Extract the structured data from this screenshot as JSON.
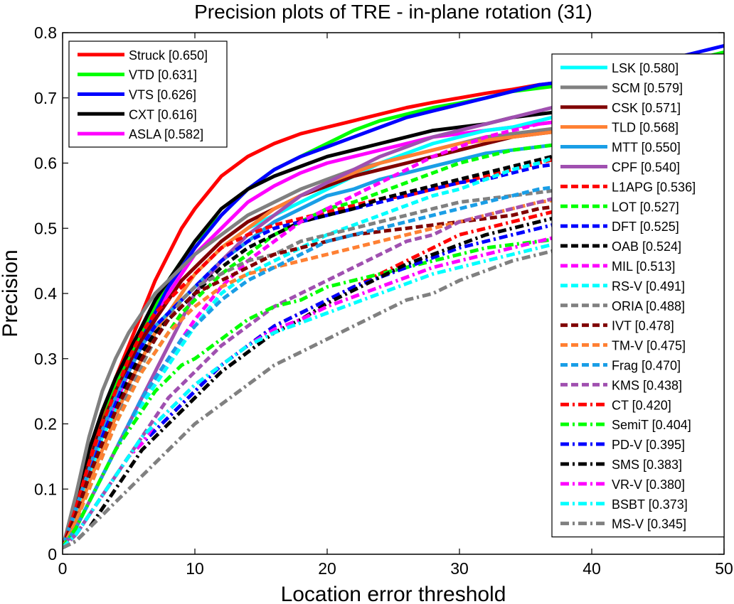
{
  "chart_data": {
    "type": "line",
    "title": "Precision plots of TRE - in-plane rotation (31)",
    "xlabel": "Location error threshold",
    "ylabel": "Precision",
    "xlim": [
      0,
      50
    ],
    "ylim": [
      0,
      0.8
    ],
    "xticks": [
      "0",
      "10",
      "20",
      "30",
      "40",
      "50"
    ],
    "yticks": [
      "0",
      "0.1",
      "0.2",
      "0.3",
      "0.4",
      "0.5",
      "0.6",
      "0.7",
      "0.8"
    ],
    "grid": false,
    "legends": [
      {
        "placement": "top-left",
        "entries": [
          0,
          1,
          2,
          3,
          4
        ]
      },
      {
        "placement": "right",
        "entries": [
          5,
          6,
          7,
          8,
          9,
          10,
          11,
          12,
          13,
          14,
          15,
          16,
          17,
          18,
          19,
          20,
          21,
          22,
          23,
          24,
          25,
          26,
          27,
          28
        ]
      }
    ],
    "x": [
      0,
      1,
      2,
      3,
      4,
      5,
      6,
      7,
      8,
      9,
      10,
      12,
      14,
      16,
      18,
      20,
      22,
      24,
      26,
      28,
      30,
      32,
      34,
      36,
      38,
      40,
      42,
      44,
      46,
      48,
      50
    ],
    "series": [
      {
        "name": "Struck [0.650]",
        "color": "#ff0000",
        "style": "solid",
        "values": [
          0.01,
          0.07,
          0.14,
          0.21,
          0.27,
          0.32,
          0.37,
          0.42,
          0.46,
          0.5,
          0.53,
          0.58,
          0.61,
          0.63,
          0.645,
          0.655,
          0.665,
          0.675,
          0.685,
          0.693,
          0.7,
          0.707,
          0.713,
          0.72,
          0.725,
          0.73,
          0.735,
          0.742,
          0.748,
          0.755,
          0.765
        ]
      },
      {
        "name": "VTD [0.631]",
        "color": "#00ff00",
        "style": "solid",
        "values": [
          0.01,
          0.07,
          0.14,
          0.2,
          0.26,
          0.3,
          0.34,
          0.38,
          0.42,
          0.45,
          0.48,
          0.52,
          0.56,
          0.59,
          0.61,
          0.63,
          0.65,
          0.665,
          0.675,
          0.685,
          0.692,
          0.7,
          0.71,
          0.715,
          0.72,
          0.725,
          0.73,
          0.74,
          0.75,
          0.76,
          0.77
        ]
      },
      {
        "name": "VTS [0.626]",
        "color": "#0000ff",
        "style": "solid",
        "values": [
          0.01,
          0.06,
          0.13,
          0.19,
          0.24,
          0.29,
          0.33,
          0.37,
          0.41,
          0.44,
          0.47,
          0.52,
          0.56,
          0.59,
          0.61,
          0.625,
          0.64,
          0.655,
          0.67,
          0.68,
          0.69,
          0.7,
          0.71,
          0.72,
          0.725,
          0.735,
          0.745,
          0.752,
          0.76,
          0.77,
          0.78
        ]
      },
      {
        "name": "CXT [0.616]",
        "color": "#000000",
        "style": "solid",
        "values": [
          0.01,
          0.08,
          0.16,
          0.22,
          0.27,
          0.31,
          0.35,
          0.39,
          0.42,
          0.45,
          0.48,
          0.53,
          0.56,
          0.58,
          0.595,
          0.61,
          0.62,
          0.63,
          0.64,
          0.65,
          0.655,
          0.66,
          0.67,
          0.675,
          0.68,
          0.685,
          0.69,
          0.695,
          0.7,
          0.705,
          0.71
        ]
      },
      {
        "name": "ASLA [0.582]",
        "color": "#ff00ff",
        "style": "solid",
        "values": [
          0.01,
          0.07,
          0.13,
          0.18,
          0.23,
          0.28,
          0.32,
          0.36,
          0.4,
          0.43,
          0.46,
          0.5,
          0.54,
          0.565,
          0.585,
          0.6,
          0.61,
          0.62,
          0.63,
          0.64,
          0.645,
          0.65,
          0.655,
          0.66,
          0.665,
          0.67,
          0.675,
          0.68,
          0.685,
          0.69,
          0.7
        ]
      },
      {
        "name": "LSK [0.580]",
        "color": "#00ffff",
        "style": "solid",
        "values": [
          0.01,
          0.06,
          0.12,
          0.18,
          0.22,
          0.26,
          0.3,
          0.34,
          0.37,
          0.4,
          0.43,
          0.47,
          0.5,
          0.52,
          0.54,
          0.56,
          0.58,
          0.6,
          0.615,
          0.63,
          0.64,
          0.65,
          0.655,
          0.665,
          0.675,
          0.685,
          0.69,
          0.695,
          0.7,
          0.71,
          0.72
        ]
      },
      {
        "name": "SCM [0.579]",
        "color": "#808080",
        "style": "solid",
        "values": [
          0.01,
          0.09,
          0.18,
          0.25,
          0.3,
          0.34,
          0.37,
          0.4,
          0.42,
          0.44,
          0.46,
          0.49,
          0.52,
          0.54,
          0.56,
          0.575,
          0.59,
          0.6,
          0.61,
          0.62,
          0.63,
          0.64,
          0.645,
          0.65,
          0.655,
          0.66,
          0.665,
          0.67,
          0.675,
          0.68,
          0.69
        ]
      },
      {
        "name": "CSK [0.571]",
        "color": "#800000",
        "style": "solid",
        "values": [
          0.01,
          0.07,
          0.14,
          0.2,
          0.25,
          0.29,
          0.33,
          0.36,
          0.39,
          0.42,
          0.44,
          0.48,
          0.51,
          0.53,
          0.55,
          0.565,
          0.58,
          0.59,
          0.6,
          0.61,
          0.62,
          0.63,
          0.64,
          0.645,
          0.65,
          0.655,
          0.66,
          0.665,
          0.67,
          0.675,
          0.68
        ]
      },
      {
        "name": "TLD [0.568]",
        "color": "#ff8033",
        "style": "solid",
        "values": [
          0.01,
          0.05,
          0.11,
          0.16,
          0.21,
          0.26,
          0.3,
          0.34,
          0.37,
          0.4,
          0.43,
          0.47,
          0.5,
          0.53,
          0.55,
          0.57,
          0.585,
          0.6,
          0.61,
          0.62,
          0.63,
          0.635,
          0.64,
          0.645,
          0.65,
          0.655,
          0.66,
          0.665,
          0.67,
          0.675,
          0.68
        ]
      },
      {
        "name": "MTT [0.550]",
        "color": "#1a9ee6",
        "style": "solid",
        "values": [
          0.01,
          0.07,
          0.13,
          0.19,
          0.24,
          0.28,
          0.32,
          0.35,
          0.37,
          0.39,
          0.41,
          0.45,
          0.48,
          0.51,
          0.53,
          0.55,
          0.56,
          0.575,
          0.585,
          0.595,
          0.605,
          0.615,
          0.62,
          0.625,
          0.63,
          0.635,
          0.64,
          0.645,
          0.65,
          0.655,
          0.66
        ]
      },
      {
        "name": "CPF [0.540]",
        "color": "#a050b0",
        "style": "solid",
        "values": [
          0.01,
          0.04,
          0.08,
          0.12,
          0.16,
          0.2,
          0.24,
          0.28,
          0.32,
          0.36,
          0.4,
          0.45,
          0.49,
          0.52,
          0.55,
          0.57,
          0.59,
          0.61,
          0.625,
          0.64,
          0.65,
          0.66,
          0.67,
          0.68,
          0.69,
          0.7,
          0.71,
          0.72,
          0.73,
          0.74,
          0.75
        ]
      },
      {
        "name": "L1APG [0.536]",
        "color": "#ff0000",
        "style": "dashed",
        "values": [
          0.01,
          0.07,
          0.14,
          0.2,
          0.25,
          0.3,
          0.34,
          0.37,
          0.39,
          0.41,
          0.43,
          0.47,
          0.49,
          0.505,
          0.515,
          0.525,
          0.535,
          0.545,
          0.55,
          0.56,
          0.57,
          0.58,
          0.59,
          0.6,
          0.61,
          0.62,
          0.63,
          0.64,
          0.65,
          0.655,
          0.665
        ]
      },
      {
        "name": "LOT [0.527]",
        "color": "#00ff00",
        "style": "dashed",
        "values": [
          0.01,
          0.05,
          0.1,
          0.15,
          0.2,
          0.24,
          0.28,
          0.31,
          0.34,
          0.37,
          0.39,
          0.43,
          0.46,
          0.49,
          0.51,
          0.53,
          0.54,
          0.555,
          0.57,
          0.585,
          0.6,
          0.61,
          0.62,
          0.625,
          0.63,
          0.635,
          0.64,
          0.645,
          0.65,
          0.655,
          0.66
        ]
      },
      {
        "name": "DFT [0.525]",
        "color": "#0000ff",
        "style": "dashed",
        "values": [
          0.01,
          0.06,
          0.12,
          0.18,
          0.23,
          0.28,
          0.32,
          0.35,
          0.37,
          0.39,
          0.41,
          0.45,
          0.48,
          0.5,
          0.51,
          0.52,
          0.53,
          0.54,
          0.55,
          0.56,
          0.57,
          0.575,
          0.585,
          0.595,
          0.6,
          0.605,
          0.61,
          0.62,
          0.63,
          0.64,
          0.65
        ]
      },
      {
        "name": "OAB [0.524]",
        "color": "#000000",
        "style": "dashed",
        "values": [
          0.01,
          0.06,
          0.12,
          0.17,
          0.22,
          0.27,
          0.31,
          0.34,
          0.36,
          0.38,
          0.4,
          0.44,
          0.47,
          0.49,
          0.51,
          0.52,
          0.53,
          0.545,
          0.555,
          0.565,
          0.575,
          0.585,
          0.595,
          0.605,
          0.615,
          0.62,
          0.625,
          0.63,
          0.64,
          0.65,
          0.66
        ]
      },
      {
        "name": "MIL [0.513]",
        "color": "#ff00ff",
        "style": "dashed",
        "values": [
          0.01,
          0.04,
          0.08,
          0.12,
          0.16,
          0.2,
          0.24,
          0.27,
          0.3,
          0.33,
          0.36,
          0.41,
          0.45,
          0.48,
          0.51,
          0.53,
          0.55,
          0.57,
          0.59,
          0.61,
          0.625,
          0.64,
          0.65,
          0.66,
          0.665,
          0.67,
          0.675,
          0.68,
          0.685,
          0.69,
          0.7
        ]
      },
      {
        "name": "RS-V [0.491]",
        "color": "#00ffff",
        "style": "dashed",
        "values": [
          0.01,
          0.04,
          0.08,
          0.12,
          0.16,
          0.2,
          0.23,
          0.26,
          0.29,
          0.32,
          0.35,
          0.4,
          0.43,
          0.45,
          0.47,
          0.49,
          0.505,
          0.52,
          0.535,
          0.55,
          0.56,
          0.575,
          0.59,
          0.6,
          0.615,
          0.63,
          0.64,
          0.65,
          0.66,
          0.675,
          0.69
        ]
      },
      {
        "name": "ORIA [0.488]",
        "color": "#808080",
        "style": "dashed",
        "values": [
          0.01,
          0.05,
          0.1,
          0.15,
          0.2,
          0.25,
          0.29,
          0.33,
          0.36,
          0.39,
          0.41,
          0.43,
          0.45,
          0.46,
          0.48,
          0.49,
          0.5,
          0.51,
          0.52,
          0.53,
          0.54,
          0.545,
          0.55,
          0.555,
          0.56,
          0.565,
          0.57,
          0.575,
          0.58,
          0.585,
          0.59
        ]
      },
      {
        "name": "IVT [0.478]",
        "color": "#800000",
        "style": "dashed",
        "values": [
          0.01,
          0.06,
          0.12,
          0.17,
          0.22,
          0.26,
          0.3,
          0.33,
          0.36,
          0.38,
          0.4,
          0.42,
          0.44,
          0.46,
          0.47,
          0.48,
          0.49,
          0.495,
          0.5,
          0.505,
          0.51,
          0.515,
          0.52,
          0.53,
          0.535,
          0.54,
          0.545,
          0.55,
          0.56,
          0.565,
          0.57
        ]
      },
      {
        "name": "TM-V [0.475]",
        "color": "#ff8033",
        "style": "dashed",
        "values": [
          0.01,
          0.05,
          0.1,
          0.15,
          0.2,
          0.24,
          0.28,
          0.31,
          0.34,
          0.36,
          0.38,
          0.41,
          0.43,
          0.44,
          0.45,
          0.46,
          0.47,
          0.48,
          0.49,
          0.5,
          0.51,
          0.52,
          0.53,
          0.54,
          0.545,
          0.55,
          0.555,
          0.56,
          0.565,
          0.57,
          0.58
        ]
      },
      {
        "name": "Frag [0.470]",
        "color": "#1a9ee6",
        "style": "dashed",
        "values": [
          0.01,
          0.04,
          0.08,
          0.12,
          0.16,
          0.2,
          0.24,
          0.27,
          0.3,
          0.33,
          0.35,
          0.39,
          0.42,
          0.44,
          0.46,
          0.48,
          0.49,
          0.5,
          0.51,
          0.52,
          0.53,
          0.54,
          0.55,
          0.56,
          0.565,
          0.57,
          0.58,
          0.59,
          0.6,
          0.605,
          0.61
        ]
      },
      {
        "name": "KMS [0.438]",
        "color": "#a050b0",
        "style": "dashed",
        "values": [
          0.01,
          0.03,
          0.06,
          0.09,
          0.12,
          0.15,
          0.18,
          0.21,
          0.24,
          0.26,
          0.28,
          0.32,
          0.35,
          0.38,
          0.4,
          0.42,
          0.44,
          0.46,
          0.48,
          0.49,
          0.51,
          0.52,
          0.53,
          0.54,
          0.55,
          0.56,
          0.565,
          0.57,
          0.575,
          0.58,
          0.59
        ]
      },
      {
        "name": "CT [0.420]",
        "color": "#ff0000",
        "style": "dashdot",
        "values": [
          0.01,
          0.03,
          0.06,
          0.09,
          0.12,
          0.15,
          0.17,
          0.19,
          0.21,
          0.23,
          0.25,
          0.29,
          0.32,
          0.35,
          0.37,
          0.39,
          0.41,
          0.43,
          0.45,
          0.47,
          0.49,
          0.5,
          0.51,
          0.52,
          0.53,
          0.535,
          0.54,
          0.545,
          0.55,
          0.555,
          0.56
        ]
      },
      {
        "name": "SemiT [0.404]",
        "color": "#00ff00",
        "style": "dashdot",
        "values": [
          0.01,
          0.04,
          0.08,
          0.12,
          0.16,
          0.19,
          0.22,
          0.25,
          0.27,
          0.29,
          0.3,
          0.33,
          0.36,
          0.38,
          0.39,
          0.41,
          0.42,
          0.43,
          0.44,
          0.45,
          0.46,
          0.47,
          0.475,
          0.48,
          0.485,
          0.49,
          0.5,
          0.505,
          0.51,
          0.515,
          0.52
        ]
      },
      {
        "name": "PD-V [0.395]",
        "color": "#0000ff",
        "style": "dashdot",
        "values": [
          0.01,
          0.03,
          0.06,
          0.09,
          0.12,
          0.15,
          0.17,
          0.19,
          0.21,
          0.23,
          0.25,
          0.29,
          0.32,
          0.35,
          0.37,
          0.39,
          0.41,
          0.425,
          0.44,
          0.455,
          0.47,
          0.48,
          0.49,
          0.5,
          0.51,
          0.515,
          0.52,
          0.525,
          0.53,
          0.535,
          0.54
        ]
      },
      {
        "name": "SMS [0.383]",
        "color": "#000000",
        "style": "dashdot",
        "values": [
          0.01,
          0.02,
          0.04,
          0.07,
          0.1,
          0.13,
          0.16,
          0.18,
          0.2,
          0.22,
          0.24,
          0.28,
          0.31,
          0.34,
          0.36,
          0.385,
          0.405,
          0.425,
          0.445,
          0.46,
          0.475,
          0.49,
          0.5,
          0.51,
          0.52,
          0.525,
          0.53,
          0.535,
          0.54,
          0.545,
          0.55
        ]
      },
      {
        "name": "VR-V [0.380]",
        "color": "#ff00ff",
        "style": "dashdot",
        "values": [
          0.01,
          0.03,
          0.06,
          0.09,
          0.12,
          0.15,
          0.17,
          0.2,
          0.22,
          0.24,
          0.26,
          0.29,
          0.32,
          0.345,
          0.36,
          0.38,
          0.395,
          0.41,
          0.425,
          0.44,
          0.45,
          0.46,
          0.47,
          0.48,
          0.49,
          0.5,
          0.51,
          0.515,
          0.52,
          0.525,
          0.53
        ]
      },
      {
        "name": "BSBT [0.373]",
        "color": "#00ffff",
        "style": "dashdot",
        "values": [
          0.01,
          0.03,
          0.06,
          0.09,
          0.12,
          0.15,
          0.18,
          0.2,
          0.22,
          0.24,
          0.26,
          0.29,
          0.32,
          0.34,
          0.355,
          0.37,
          0.385,
          0.4,
          0.415,
          0.43,
          0.44,
          0.45,
          0.46,
          0.47,
          0.48,
          0.49,
          0.5,
          0.51,
          0.52,
          0.525,
          0.53
        ]
      },
      {
        "name": "MS-V [0.345]",
        "color": "#808080",
        "style": "dashdot",
        "values": [
          0.01,
          0.02,
          0.04,
          0.06,
          0.08,
          0.1,
          0.12,
          0.14,
          0.16,
          0.18,
          0.2,
          0.23,
          0.26,
          0.29,
          0.31,
          0.33,
          0.35,
          0.37,
          0.39,
          0.4,
          0.42,
          0.435,
          0.45,
          0.46,
          0.47,
          0.48,
          0.49,
          0.5,
          0.51,
          0.515,
          0.52
        ]
      }
    ]
  }
}
